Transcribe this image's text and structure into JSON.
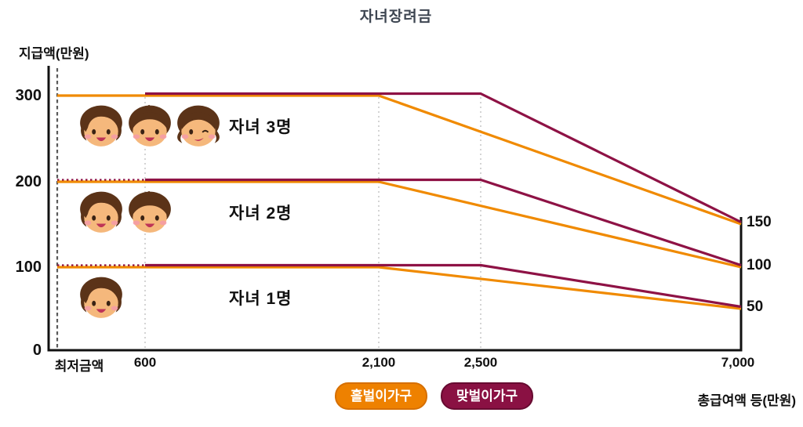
{
  "title": "자녀장려금",
  "y_axis": {
    "title": "지급액(만원)",
    "ticks": [
      {
        "label": "300",
        "value": 300
      },
      {
        "label": "200",
        "value": 200
      },
      {
        "label": "100",
        "value": 100
      },
      {
        "label": "0",
        "value": 0
      }
    ]
  },
  "x_axis": {
    "title": "총급여액 등(만원)",
    "ticks": [
      {
        "label": "최저금액",
        "key": "min"
      },
      {
        "label": "600",
        "key": "600"
      },
      {
        "label": "2,100",
        "key": "2100"
      },
      {
        "label": "2,500",
        "key": "2500"
      },
      {
        "label": "7,000",
        "key": "7000"
      }
    ]
  },
  "right_axis": {
    "labels": [
      {
        "label": "150",
        "value": 150
      },
      {
        "label": "100",
        "value": 100
      },
      {
        "label": "50",
        "value": 50
      }
    ]
  },
  "rows": [
    {
      "label": "자녀 3명",
      "children": 3,
      "value": 300,
      "faces": [
        "girl",
        "boy",
        "girl-wink"
      ]
    },
    {
      "label": "자녀 2명",
      "children": 2,
      "value": 200,
      "faces": [
        "girl",
        "boy"
      ]
    },
    {
      "label": "자녀 1명",
      "children": 1,
      "value": 100,
      "faces": [
        "girl"
      ]
    }
  ],
  "legend": [
    {
      "label": "홀벌이가구",
      "bg": "#EE8100",
      "border": "#D66F00"
    },
    {
      "label": "맞벌이가구",
      "bg": "#8A1143",
      "border": "#670B31"
    }
  ],
  "colors": {
    "single_income_line": "#F08A00",
    "dual_income_line": "#8E1245",
    "title_text": "#3E4652",
    "gridline": "#C9C9C9",
    "min_dashed_line": "#5A5A5A"
  },
  "chart_data": {
    "type": "line",
    "title": "자녀장려금",
    "xlabel": "총급여액 등(만원)",
    "ylabel": "지급액(만원)",
    "ylim": [
      0,
      330
    ],
    "y_ticks": [
      0,
      100,
      200,
      300
    ],
    "x_tick_labels": [
      "최저금액",
      "600",
      "2,100",
      "2,500",
      "7,000"
    ],
    "x_scale_note": "schematic, not linear",
    "right_end_labels": [
      150,
      100,
      50
    ],
    "legend_position": "bottom",
    "series": [
      {
        "name": "자녀 3명 홀벌이가구",
        "household": "홀벌이가구",
        "color": "#F08A00",
        "points": [
          [
            "min",
            300
          ],
          [
            "2100",
            300
          ],
          [
            "7000",
            150
          ]
        ]
      },
      {
        "name": "자녀 2명 홀벌이가구",
        "household": "홀벌이가구",
        "color": "#F08A00",
        "points": [
          [
            "min",
            200
          ],
          [
            "2100",
            200
          ],
          [
            "7000",
            100
          ]
        ]
      },
      {
        "name": "자녀 1명 홀벌이가구",
        "household": "홀벌이가구",
        "color": "#F08A00",
        "points": [
          [
            "min",
            100
          ],
          [
            "2100",
            100
          ],
          [
            "7000",
            50
          ]
        ]
      },
      {
        "name": "자녀 3명 맞벌이가구",
        "household": "맞벌이가구",
        "color": "#8E1245",
        "points": [
          [
            "600",
            300
          ],
          [
            "2500",
            300
          ],
          [
            "7000",
            150
          ]
        ]
      },
      {
        "name": "자녀 2명 맞벌이가구",
        "household": "맞벌이가구",
        "color": "#8E1245",
        "points": [
          [
            "600",
            200
          ],
          [
            "2500",
            200
          ],
          [
            "7000",
            100
          ]
        ],
        "leading_dashed": [
          [
            "min",
            200
          ],
          [
            "600",
            200
          ]
        ]
      },
      {
        "name": "자녀 1명 맞벌이가구",
        "household": "맞벌이가구",
        "color": "#8E1245",
        "points": [
          [
            "600",
            100
          ],
          [
            "2500",
            100
          ],
          [
            "7000",
            50
          ]
        ],
        "leading_dashed": [
          [
            "min",
            100
          ],
          [
            "600",
            100
          ]
        ]
      }
    ]
  }
}
